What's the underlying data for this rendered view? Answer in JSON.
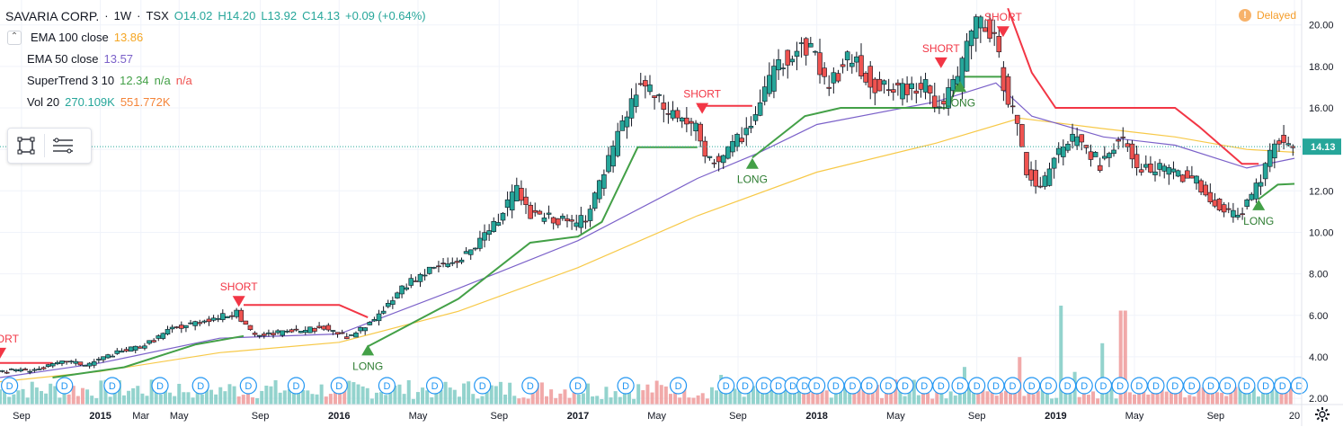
{
  "header": {
    "symbol": "SAVARIA CORP.",
    "interval": "1W",
    "exchange": "TSX",
    "open": "O14.02",
    "high": "H14.20",
    "low": "L13.92",
    "close": "C14.13",
    "change": "+0.09 (+0.64%)",
    "collapse_icon": "chevron-up-icon"
  },
  "indicators": {
    "ema100": {
      "label": "EMA 100 close",
      "value": "13.86"
    },
    "ema50": {
      "label": "EMA 50 close",
      "value": "13.57"
    },
    "supertrend": {
      "label": "SuperTrend 3 10",
      "value": "12.34",
      "na1": "n/a",
      "na2": "n/a"
    },
    "vol": {
      "label": "Vol 20",
      "value1": "270.109K",
      "value2": "551.772K"
    }
  },
  "toolbar": {
    "icons": [
      "rectangle-select-icon",
      "menu-lines-icon"
    ]
  },
  "status": {
    "label": "Delayed",
    "icon": "delayed-clock-icon"
  },
  "settings_icon": "gear-icon",
  "colors": {
    "up": "#26a69a",
    "down": "#ef5350",
    "ema100": "#f7c948",
    "ema50": "#7b61c9",
    "st_up": "#43a047",
    "st_down": "#f23645",
    "vol_up": "#80cbc4",
    "vol_down": "#ef9a9a",
    "price_label_bg": "#26a69a"
  },
  "chart_data": {
    "type": "candlestick",
    "x_axis_labels": [
      "Sep",
      "2015",
      "Mar",
      "May",
      "Sep",
      "2016",
      "May",
      "Sep",
      "2017",
      "May",
      "Sep",
      "2018",
      "May",
      "Sep",
      "2019",
      "May",
      "Sep",
      "20"
    ],
    "x_axis_label_dates": [
      2014.67,
      2015.0,
      2015.17,
      2015.33,
      2015.67,
      2016.0,
      2016.33,
      2016.67,
      2017.0,
      2017.33,
      2017.67,
      2018.0,
      2018.33,
      2018.67,
      2019.0,
      2019.33,
      2019.67,
      2020.0
    ],
    "y_axis_ticks": [
      "2.00",
      "4.00",
      "6.00",
      "8.00",
      "10.00",
      "12.00",
      "14.00",
      "16.00",
      "18.00",
      "20.00"
    ],
    "y_axis_tick_values": [
      2,
      4,
      6,
      8,
      10,
      12,
      14,
      16,
      18,
      20
    ],
    "ylim": [
      1.7,
      21.2
    ],
    "xlim": [
      2014.58,
      2020.03
    ],
    "last_price": "14.13",
    "last_price_value": 14.13,
    "price_path": [
      [
        2014.58,
        3.3
      ],
      [
        2014.75,
        3.4
      ],
      [
        2014.87,
        3.8
      ],
      [
        2014.95,
        3.6
      ],
      [
        2015.05,
        4.1
      ],
      [
        2015.2,
        4.6
      ],
      [
        2015.3,
        5.3
      ],
      [
        2015.45,
        5.8
      ],
      [
        2015.58,
        6.1
      ],
      [
        2015.62,
        5.5
      ],
      [
        2015.65,
        5.0
      ],
      [
        2015.8,
        5.2
      ],
      [
        2015.95,
        5.4
      ],
      [
        2016.05,
        4.9
      ],
      [
        2016.15,
        5.7
      ],
      [
        2016.22,
        6.6
      ],
      [
        2016.3,
        7.6
      ],
      [
        2016.4,
        8.3
      ],
      [
        2016.5,
        8.6
      ],
      [
        2016.6,
        9.5
      ],
      [
        2016.7,
        11.0
      ],
      [
        2016.76,
        12.2
      ],
      [
        2016.8,
        10.8
      ],
      [
        2016.9,
        10.7
      ],
      [
        2017.0,
        10.4
      ],
      [
        2017.05,
        10.8
      ],
      [
        2017.15,
        13.8
      ],
      [
        2017.27,
        17.3
      ],
      [
        2017.37,
        16.0
      ],
      [
        2017.5,
        15.1
      ],
      [
        2017.55,
        13.3
      ],
      [
        2017.65,
        14.0
      ],
      [
        2017.75,
        15.6
      ],
      [
        2017.85,
        18.2
      ],
      [
        2017.95,
        19.0
      ],
      [
        2018.0,
        18.8
      ],
      [
        2018.05,
        17.0
      ],
      [
        2018.15,
        18.5
      ],
      [
        2018.25,
        17.1
      ],
      [
        2018.35,
        16.8
      ],
      [
        2018.45,
        17.2
      ],
      [
        2018.52,
        16.0
      ],
      [
        2018.6,
        17.4
      ],
      [
        2018.67,
        20.3
      ],
      [
        2018.75,
        19.5
      ],
      [
        2018.8,
        16.8
      ],
      [
        2018.85,
        15.0
      ],
      [
        2018.88,
        13.2
      ],
      [
        2018.95,
        11.9
      ],
      [
        2019.0,
        13.8
      ],
      [
        2019.1,
        14.6
      ],
      [
        2019.2,
        13.2
      ],
      [
        2019.28,
        14.6
      ],
      [
        2019.35,
        13.1
      ],
      [
        2019.5,
        13.0
      ],
      [
        2019.6,
        12.4
      ],
      [
        2019.7,
        11.0
      ],
      [
        2019.78,
        10.9
      ],
      [
        2019.85,
        12.2
      ],
      [
        2019.93,
        14.4
      ],
      [
        2020.0,
        14.13
      ]
    ],
    "ema100_path": [
      [
        2014.58,
        2.8
      ],
      [
        2015.0,
        3.3
      ],
      [
        2015.5,
        4.2
      ],
      [
        2016.0,
        4.7
      ],
      [
        2016.5,
        6.2
      ],
      [
        2017.0,
        8.3
      ],
      [
        2017.5,
        10.8
      ],
      [
        2018.0,
        12.9
      ],
      [
        2018.5,
        14.3
      ],
      [
        2018.85,
        15.5
      ],
      [
        2019.2,
        15.0
      ],
      [
        2019.5,
        14.6
      ],
      [
        2019.8,
        14.0
      ],
      [
        2020.0,
        13.86
      ]
    ],
    "ema50_path": [
      [
        2014.58,
        3.0
      ],
      [
        2015.0,
        3.7
      ],
      [
        2015.5,
        4.9
      ],
      [
        2016.0,
        5.1
      ],
      [
        2016.5,
        7.3
      ],
      [
        2017.0,
        9.6
      ],
      [
        2017.5,
        12.6
      ],
      [
        2017.75,
        13.8
      ],
      [
        2018.0,
        15.2
      ],
      [
        2018.5,
        16.3
      ],
      [
        2018.75,
        17.2
      ],
      [
        2018.9,
        15.6
      ],
      [
        2019.2,
        14.6
      ],
      [
        2019.5,
        14.2
      ],
      [
        2019.8,
        13.1
      ],
      [
        2020.0,
        13.57
      ]
    ],
    "supertrend_segments": [
      {
        "dir": "down",
        "points": [
          [
            2014.58,
            3.7
          ],
          [
            2014.8,
            3.7
          ]
        ]
      },
      {
        "dir": "up",
        "points": [
          [
            2014.8,
            3.0
          ],
          [
            2015.1,
            3.5
          ],
          [
            2015.4,
            4.6
          ],
          [
            2015.6,
            5.0
          ]
        ]
      },
      {
        "dir": "down",
        "points": [
          [
            2015.6,
            6.5
          ],
          [
            2016.0,
            6.5
          ],
          [
            2016.12,
            5.9
          ]
        ]
      },
      {
        "dir": "up",
        "points": [
          [
            2016.12,
            4.5
          ],
          [
            2016.5,
            6.8
          ],
          [
            2016.8,
            9.5
          ],
          [
            2017.0,
            9.8
          ],
          [
            2017.1,
            10.5
          ],
          [
            2017.25,
            14.1
          ],
          [
            2017.5,
            14.1
          ]
        ]
      },
      {
        "dir": "down",
        "points": [
          [
            2017.5,
            16.1
          ],
          [
            2017.73,
            16.1
          ]
        ]
      },
      {
        "dir": "up",
        "points": [
          [
            2017.73,
            13.6
          ],
          [
            2017.95,
            15.6
          ],
          [
            2018.1,
            16.0
          ],
          [
            2018.55,
            16.0
          ],
          [
            2018.6,
            17.5
          ],
          [
            2018.8,
            17.5
          ]
        ]
      },
      {
        "dir": "down",
        "points": [
          [
            2018.8,
            20.8
          ],
          [
            2018.9,
            17.7
          ],
          [
            2019.0,
            16.0
          ],
          [
            2019.5,
            16.0
          ],
          [
            2019.6,
            15.1
          ],
          [
            2019.78,
            13.3
          ],
          [
            2019.85,
            13.3
          ]
        ]
      },
      {
        "dir": "up",
        "points": [
          [
            2019.85,
            11.6
          ],
          [
            2019.93,
            12.3
          ],
          [
            2020.0,
            12.34
          ]
        ]
      }
    ],
    "signals": [
      {
        "type": "SHORT",
        "date": 2014.58,
        "price": 4.0
      },
      {
        "type": "SHORT",
        "date": 2015.58,
        "price": 6.5
      },
      {
        "type": "LONG",
        "date": 2016.12,
        "price": 4.5
      },
      {
        "type": "SHORT",
        "date": 2017.52,
        "price": 15.8
      },
      {
        "type": "LONG",
        "date": 2017.73,
        "price": 13.5
      },
      {
        "type": "SHORT",
        "date": 2018.52,
        "price": 18.0
      },
      {
        "type": "LONG",
        "date": 2018.6,
        "price": 17.2
      },
      {
        "type": "SHORT",
        "date": 2018.78,
        "price": 19.5
      },
      {
        "type": "LONG",
        "date": 2019.85,
        "price": 11.5
      }
    ],
    "dividend_marker": "D",
    "dividend_dates": [
      2014.62,
      2014.85,
      2015.05,
      2015.25,
      2015.42,
      2015.62,
      2015.82,
      2016.0,
      2016.2,
      2016.4,
      2016.6,
      2016.8,
      2017.0,
      2017.2,
      2017.42,
      2017.62,
      2017.7,
      2017.78,
      2017.84,
      2017.9,
      2017.95,
      2018.0,
      2018.08,
      2018.15,
      2018.22,
      2018.3,
      2018.37,
      2018.45,
      2018.52,
      2018.6,
      2018.67,
      2018.75,
      2018.82,
      2018.9,
      2018.97,
      2019.05,
      2019.12,
      2019.2,
      2019.27,
      2019.35,
      2019.42,
      2019.5,
      2019.57,
      2019.65,
      2019.72,
      2019.8,
      2019.88,
      2019.95,
      2020.02
    ],
    "volume_spikes": [
      {
        "date": 2018.62,
        "height": 0.38,
        "dir": "up"
      },
      {
        "date": 2018.85,
        "height": 0.48,
        "dir": "down"
      },
      {
        "date": 2019.02,
        "height": 1.0,
        "dir": "down"
      },
      {
        "date": 2019.08,
        "height": 0.33,
        "dir": "down"
      },
      {
        "date": 2019.2,
        "height": 0.62,
        "dir": "down"
      },
      {
        "date": 2019.28,
        "height": 0.95,
        "dir": "down"
      },
      {
        "date": 2018.4,
        "height": 0.25,
        "dir": "up"
      },
      {
        "date": 2017.6,
        "height": 0.3,
        "dir": "down"
      },
      {
        "date": 2019.78,
        "height": 0.18,
        "dir": "down"
      },
      {
        "date": 2019.93,
        "height": 0.26,
        "dir": "up"
      }
    ]
  }
}
